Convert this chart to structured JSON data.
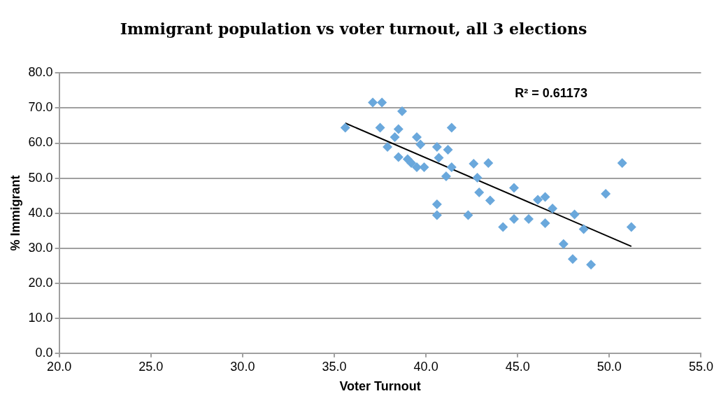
{
  "chart_data": {
    "type": "scatter",
    "title": "Immigrant population vs voter turnout, all 3 elections",
    "xlabel": "Voter Turnout",
    "ylabel": "% Immigrant",
    "annotations": [
      "R² = 0.61173"
    ],
    "xlim": [
      20,
      55
    ],
    "xticks": [
      {
        "value": 20,
        "label": "20.0"
      },
      {
        "value": 25,
        "label": "25.0"
      },
      {
        "value": 30,
        "label": "30.0"
      },
      {
        "value": 35,
        "label": "35.0"
      },
      {
        "value": 40,
        "label": "40.0"
      },
      {
        "value": 45,
        "label": "45.0"
      },
      {
        "value": 50,
        "label": "50.0"
      },
      {
        "value": 55,
        "label": "55.0"
      }
    ],
    "ylim": [
      0,
      80
    ],
    "yticks": [
      {
        "value": 0,
        "label": "0.0"
      },
      {
        "value": 10,
        "label": "10.0"
      },
      {
        "value": 20,
        "label": "20.0"
      },
      {
        "value": 30,
        "label": "30.0"
      },
      {
        "value": 40,
        "label": "40.0"
      },
      {
        "value": 50,
        "label": "50.0"
      },
      {
        "value": 60,
        "label": "60.0"
      },
      {
        "value": 70,
        "label": "70.0"
      },
      {
        "value": 80,
        "label": "80.0"
      }
    ],
    "grid": "y",
    "legend": false,
    "marker": "diamond",
    "series": [
      {
        "type": "scatter",
        "color": "#6aa8dc",
        "x": [
          35.6,
          37.1,
          37.6,
          38.7,
          37.5,
          38.5,
          38.3,
          37.9,
          39.5,
          39.7,
          41.4,
          38.5,
          39.0,
          39.2,
          39.5,
          39.9,
          40.6,
          40.7,
          41.2,
          41.4,
          41.1,
          42.6,
          43.4,
          42.8,
          42.9,
          43.5,
          40.6,
          40.6,
          42.3,
          44.2,
          44.8,
          44.8,
          45.6,
          46.1,
          46.5,
          46.9,
          46.5,
          48.1,
          48.6,
          47.5,
          48.0,
          49.0,
          49.8,
          51.2,
          50.7
        ],
        "values": [
          64.4,
          71.6,
          71.6,
          69.1,
          64.4,
          64.0,
          61.7,
          58.9,
          61.7,
          59.6,
          64.4,
          56.0,
          55.4,
          54.3,
          53.1,
          53.1,
          58.9,
          55.8,
          58.1,
          53.1,
          50.5,
          54.1,
          54.3,
          50.1,
          45.9,
          43.6,
          42.5,
          39.4,
          39.4,
          36.0,
          47.2,
          38.3,
          38.3,
          43.8,
          44.6,
          41.3,
          37.1,
          39.6,
          35.4,
          31.2,
          26.9,
          25.3,
          45.5,
          36.0,
          54.3
        ]
      },
      {
        "type": "line",
        "color": "#000000",
        "marker": "none",
        "line_style": "solid",
        "x": [
          35.6,
          51.2
        ],
        "values": [
          65.7,
          30.5
        ]
      }
    ]
  }
}
